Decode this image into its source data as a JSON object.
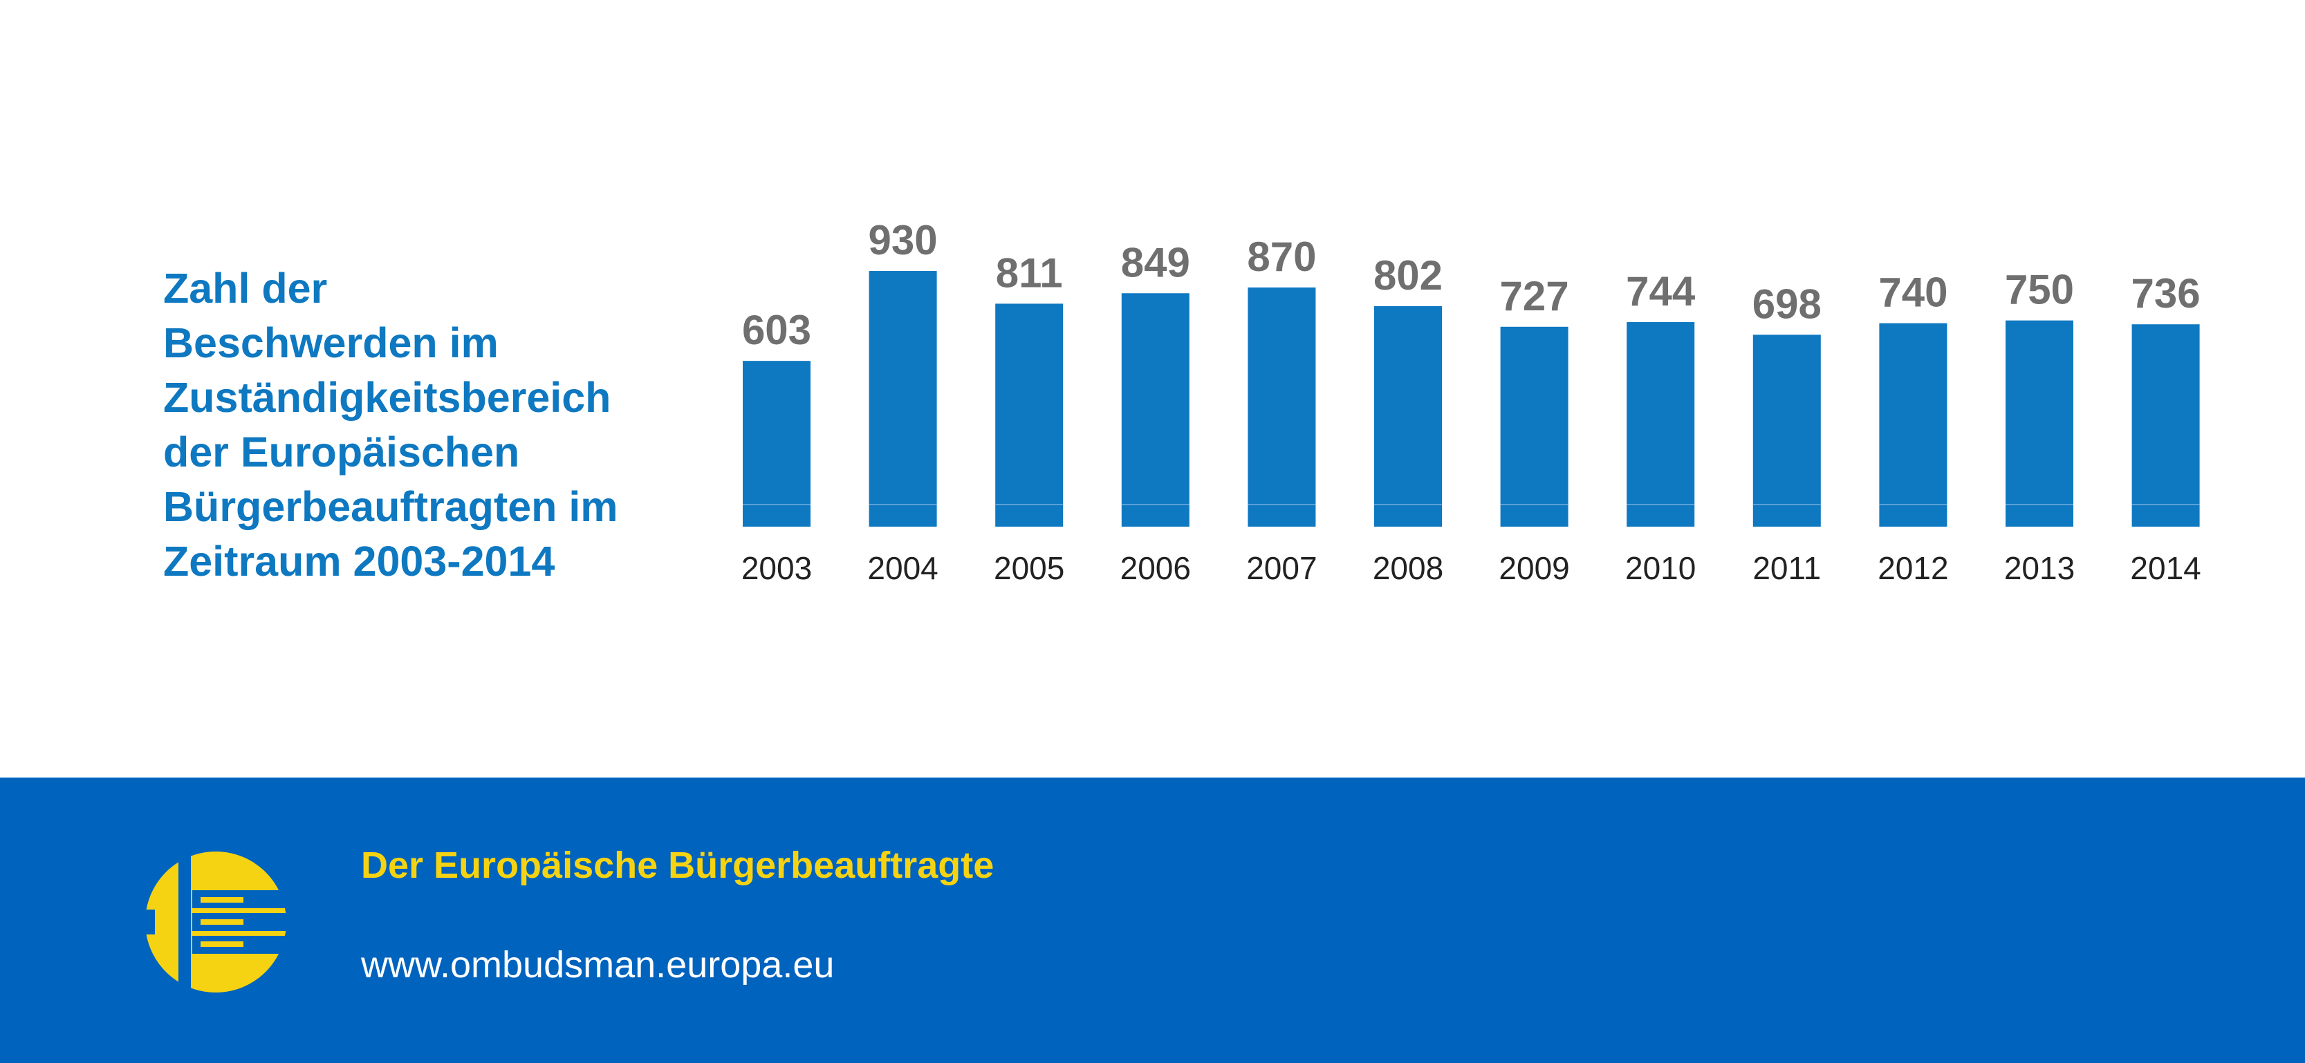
{
  "chart_data": {
    "type": "bar",
    "title_lines": [
      "Zahl der",
      "Beschwerden im",
      "Zuständigkeitsbereich",
      "der Europäischen",
      "Bürgerbeauftragten im",
      "Zeitraum 2003-2014"
    ],
    "categories": [
      "2003",
      "2004",
      "2005",
      "2006",
      "2007",
      "2008",
      "2009",
      "2010",
      "2011",
      "2012",
      "2013",
      "2014"
    ],
    "values": [
      603,
      930,
      811,
      849,
      870,
      802,
      727,
      744,
      698,
      740,
      750,
      736
    ],
    "xlabel": "",
    "ylabel": "",
    "grid": false,
    "data_labels": true,
    "bar_color": "#0e78c1",
    "label_color": "#6f6f6f"
  },
  "footer": {
    "org_name": "Der Europäische Bürgerbeauftragte",
    "url": "www.ombudsman.europa.eu",
    "logo_icon": "european-ombudsman-logo-icon",
    "background_color": "#0063be",
    "accent_color": "#f6d312"
  }
}
